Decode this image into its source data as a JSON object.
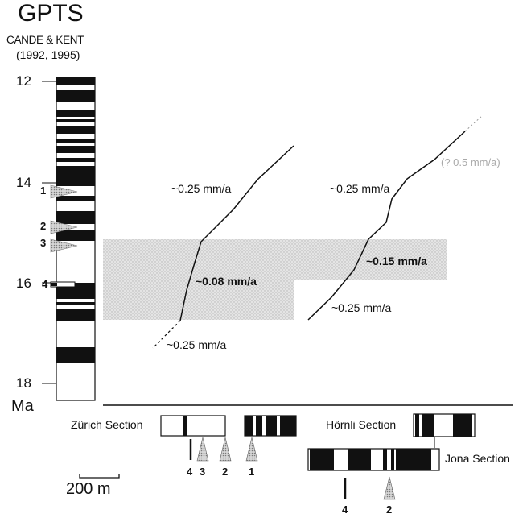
{
  "header": {
    "title": "GPTS",
    "subtitle_authors": "CANDE & KENT",
    "subtitle_years": "(1992, 1995)"
  },
  "age_axis": {
    "ticks": [
      "12",
      "14",
      "16",
      "18"
    ],
    "unit": "Ma"
  },
  "ash_markers": [
    "1",
    "2",
    "3",
    "4"
  ],
  "rates": {
    "zurich_upper": "~0.25 mm/a",
    "zurich_middle": "~0.08 mm/a",
    "zurich_lower": "~0.25 mm/a",
    "hornli_top": "(? 0.5 mm/a)",
    "hornli_upper": "~0.25 mm/a",
    "hornli_middle": "~0.15 mm/a",
    "hornli_lower": "~0.25 mm/a"
  },
  "sections": {
    "zurich": "Zürich Section",
    "hornli": "Hörnli Section",
    "jona": "Jona Section"
  },
  "zurich_levels": [
    "4",
    "3",
    "2",
    "1"
  ],
  "jona_levels": [
    "4",
    "2"
  ],
  "scale_bar": "200 m",
  "colors": {
    "ink": "#111111",
    "shade": "#dcdcdc"
  }
}
